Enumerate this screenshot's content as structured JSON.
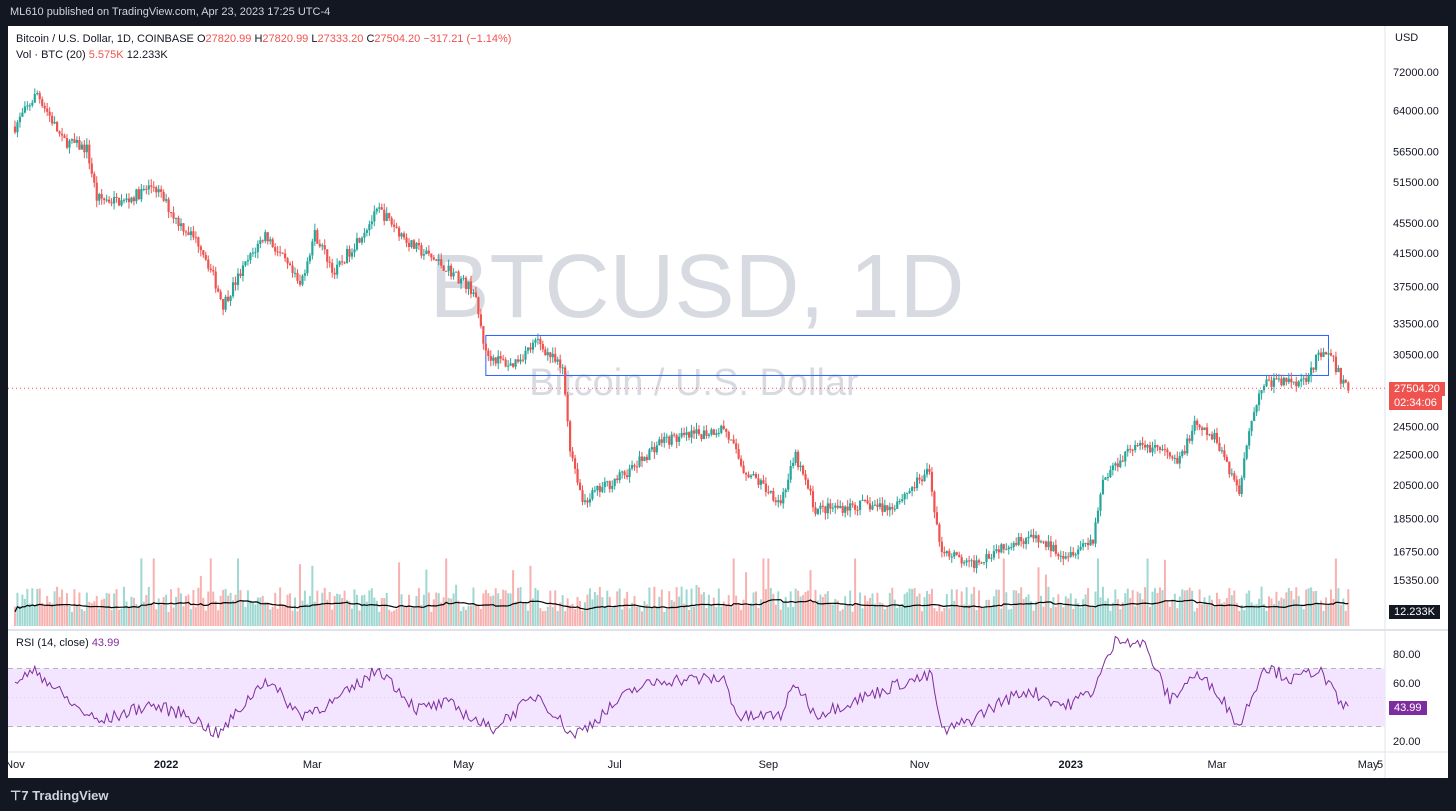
{
  "publish_line": "ML610 published on TradingView.com, Apr 23, 2023 17:25 UTC-4",
  "footer_brand": "TradingView",
  "legend": {
    "symbol_line": "Bitcoin / U.S. Dollar, 1D, COINBASE",
    "o_label": "O",
    "o_value": "27820.99",
    "h_label": "H",
    "h_value": "27820.99",
    "l_label": "L",
    "l_value": "27333.20",
    "c_label": "C",
    "c_value": "27504.20",
    "change": "−317.21 (−1.14%)",
    "vol_label": "Vol · BTC (20)",
    "vol_value": "5.575K",
    "vol_ma_value": "12.233K",
    "rsi_label": "RSI (14, close)",
    "rsi_value": "43.99"
  },
  "watermark": {
    "symbol": "BTCUSD, 1D",
    "description": "Bitcoin / U.S. Dollar"
  },
  "price_axis": {
    "currency": "USD",
    "last_price": "27504.20",
    "countdown": "02:34:06"
  },
  "colors": {
    "up": "#26a69a",
    "down": "#ef5350",
    "rsi_line": "#7e2d9e",
    "rsi_band": "#f3e5ff",
    "box": "#2962ff",
    "vol_ma": "#000000"
  },
  "chart_data": {
    "type": "candlestick",
    "symbol": "BTCUSD",
    "exchange": "COINBASE",
    "interval": "1D",
    "x_ticks": [
      "Nov",
      "2022",
      "Mar",
      "May",
      "Jul",
      "Sep",
      "Nov",
      "2023",
      "Mar",
      "May",
      "5"
    ],
    "y_ticks": [
      "72000.00",
      "64000.00",
      "56500.00",
      "51500.00",
      "45500.00",
      "41500.00",
      "37500.00",
      "33500.00",
      "30500.00",
      "24500.00",
      "22500.00",
      "20500.00",
      "18500.00",
      "16750.00",
      "15350.00"
    ],
    "y_scale": "log",
    "ylim": [
      14500,
      76000
    ],
    "rsi_ticks": [
      "80.00",
      "60.00",
      "20.00"
    ],
    "rsi_band": [
      30,
      70
    ],
    "rsi_last": 43.99,
    "volume_ma_last": "12.233K",
    "resistance_box": {
      "price_top": 32300,
      "price_bottom": 28600,
      "start": "May 10, 2022",
      "end": "Apr 15, 2023"
    },
    "last_close": 27504.2,
    "price_path": [
      {
        "date": "2021-11-01",
        "price": 61000
      },
      {
        "date": "2021-11-10",
        "price": 67500
      },
      {
        "date": "2021-11-20",
        "price": 58500
      },
      {
        "date": "2021-11-30",
        "price": 57000
      },
      {
        "date": "2021-12-04",
        "price": 49000
      },
      {
        "date": "2021-12-15",
        "price": 48500
      },
      {
        "date": "2021-12-27",
        "price": 51000
      },
      {
        "date": "2022-01-05",
        "price": 46000
      },
      {
        "date": "2022-01-15",
        "price": 42500
      },
      {
        "date": "2022-01-24",
        "price": 35500
      },
      {
        "date": "2022-02-05",
        "price": 41500
      },
      {
        "date": "2022-02-10",
        "price": 44000
      },
      {
        "date": "2022-02-24",
        "price": 37500
      },
      {
        "date": "2022-03-02",
        "price": 44000
      },
      {
        "date": "2022-03-10",
        "price": 39000
      },
      {
        "date": "2022-03-28",
        "price": 47300
      },
      {
        "date": "2022-04-10",
        "price": 42500
      },
      {
        "date": "2022-04-25",
        "price": 39500
      },
      {
        "date": "2022-05-05",
        "price": 37000
      },
      {
        "date": "2022-05-10",
        "price": 30500
      },
      {
        "date": "2022-05-20",
        "price": 29500
      },
      {
        "date": "2022-05-31",
        "price": 31700
      },
      {
        "date": "2022-06-10",
        "price": 29000
      },
      {
        "date": "2022-06-13",
        "price": 23000
      },
      {
        "date": "2022-06-18",
        "price": 19500
      },
      {
        "date": "2022-06-28",
        "price": 20500
      },
      {
        "date": "2022-07-08",
        "price": 21500
      },
      {
        "date": "2022-07-20",
        "price": 23500
      },
      {
        "date": "2022-07-30",
        "price": 23700
      },
      {
        "date": "2022-08-14",
        "price": 24400
      },
      {
        "date": "2022-08-22",
        "price": 21500
      },
      {
        "date": "2022-09-06",
        "price": 19500
      },
      {
        "date": "2022-09-12",
        "price": 22300
      },
      {
        "date": "2022-09-20",
        "price": 19000
      },
      {
        "date": "2022-10-10",
        "price": 19300
      },
      {
        "date": "2022-10-20",
        "price": 19100
      },
      {
        "date": "2022-11-05",
        "price": 21300
      },
      {
        "date": "2022-11-09",
        "price": 17000
      },
      {
        "date": "2022-11-21",
        "price": 16000
      },
      {
        "date": "2022-12-05",
        "price": 17100
      },
      {
        "date": "2022-12-15",
        "price": 17500
      },
      {
        "date": "2022-12-30",
        "price": 16600
      },
      {
        "date": "2023-01-10",
        "price": 17400
      },
      {
        "date": "2023-01-14",
        "price": 20800
      },
      {
        "date": "2023-01-25",
        "price": 23000
      },
      {
        "date": "2023-02-05",
        "price": 23000
      },
      {
        "date": "2023-02-13",
        "price": 21800
      },
      {
        "date": "2023-02-20",
        "price": 24500
      },
      {
        "date": "2023-03-01",
        "price": 23500
      },
      {
        "date": "2023-03-10",
        "price": 20000
      },
      {
        "date": "2023-03-14",
        "price": 24500
      },
      {
        "date": "2023-03-20",
        "price": 28000
      },
      {
        "date": "2023-04-05",
        "price": 28200
      },
      {
        "date": "2023-04-11",
        "price": 30300
      },
      {
        "date": "2023-04-16",
        "price": 30300
      },
      {
        "date": "2023-04-20",
        "price": 28300
      },
      {
        "date": "2023-04-23",
        "price": 27504.2
      }
    ],
    "rsi_path": [
      {
        "date": "2021-11-01",
        "value": 62
      },
      {
        "date": "2021-11-10",
        "value": 68
      },
      {
        "date": "2021-11-25",
        "value": 44
      },
      {
        "date": "2021-12-05",
        "value": 33
      },
      {
        "date": "2021-12-25",
        "value": 45
      },
      {
        "date": "2022-01-10",
        "value": 38
      },
      {
        "date": "2022-01-22",
        "value": 24
      },
      {
        "date": "2022-02-10",
        "value": 63
      },
      {
        "date": "2022-02-24",
        "value": 38
      },
      {
        "date": "2022-03-10",
        "value": 47
      },
      {
        "date": "2022-03-28",
        "value": 70
      },
      {
        "date": "2022-04-12",
        "value": 42
      },
      {
        "date": "2022-04-25",
        "value": 46
      },
      {
        "date": "2022-05-12",
        "value": 28
      },
      {
        "date": "2022-05-31",
        "value": 52
      },
      {
        "date": "2022-06-14",
        "value": 24
      },
      {
        "date": "2022-06-20",
        "value": 30
      },
      {
        "date": "2022-07-08",
        "value": 55
      },
      {
        "date": "2022-07-20",
        "value": 62
      },
      {
        "date": "2022-08-14",
        "value": 63
      },
      {
        "date": "2022-08-20",
        "value": 36
      },
      {
        "date": "2022-09-06",
        "value": 38
      },
      {
        "date": "2022-09-12",
        "value": 60
      },
      {
        "date": "2022-09-20",
        "value": 38
      },
      {
        "date": "2022-10-25",
        "value": 60
      },
      {
        "date": "2022-11-06",
        "value": 65
      },
      {
        "date": "2022-11-10",
        "value": 26
      },
      {
        "date": "2022-11-21",
        "value": 34
      },
      {
        "date": "2022-12-05",
        "value": 48
      },
      {
        "date": "2022-12-15",
        "value": 55
      },
      {
        "date": "2022-12-30",
        "value": 44
      },
      {
        "date": "2023-01-10",
        "value": 55
      },
      {
        "date": "2023-01-20",
        "value": 92
      },
      {
        "date": "2023-01-31",
        "value": 86
      },
      {
        "date": "2023-02-10",
        "value": 48
      },
      {
        "date": "2023-02-20",
        "value": 66
      },
      {
        "date": "2023-03-01",
        "value": 55
      },
      {
        "date": "2023-03-10",
        "value": 30
      },
      {
        "date": "2023-03-20",
        "value": 72
      },
      {
        "date": "2023-04-01",
        "value": 62
      },
      {
        "date": "2023-04-11",
        "value": 70
      },
      {
        "date": "2023-04-20",
        "value": 45
      },
      {
        "date": "2023-04-23",
        "value": 43.99
      }
    ]
  }
}
